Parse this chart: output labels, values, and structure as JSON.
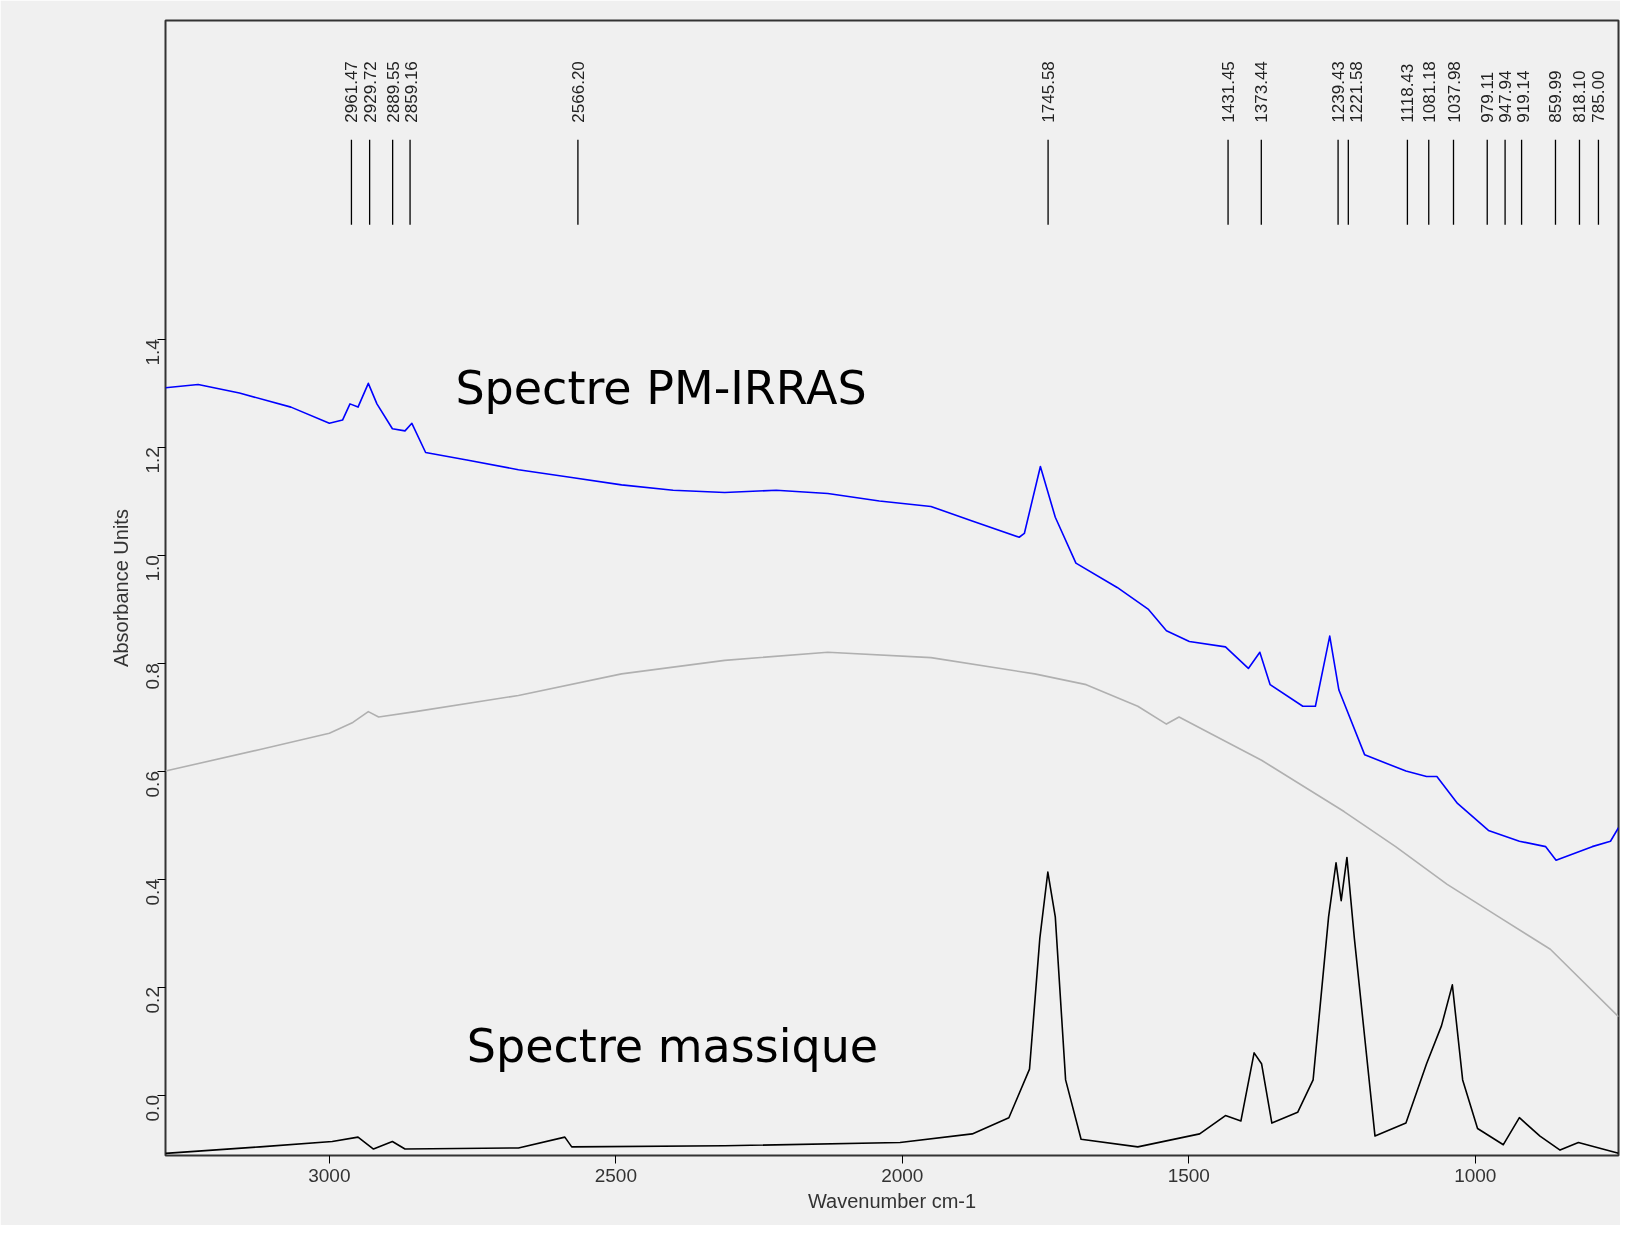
{
  "chart_data": {
    "type": "line",
    "xlabel": "Wavenumber cm-1",
    "ylabel": "Absorbance Units",
    "xlim": [
      3286,
      750
    ],
    "ylim": [
      -0.112,
      1.99
    ],
    "xticks": [
      3000,
      2500,
      2000,
      1500,
      1000
    ],
    "yticks": [
      {
        "value": 0,
        "label": "0.0"
      },
      0.2,
      0.4,
      0.6,
      0.8,
      {
        "value": 1,
        "label": "1.0"
      },
      1.2,
      1.4
    ],
    "grid": false,
    "line_style": "solid",
    "marker": "none",
    "series": [
      {
        "name": "Spectre PM-IRRAS",
        "color": "#0000ff",
        "x": [
          3286,
          3229,
          3157,
          3067,
          3000,
          2977,
          2964,
          2950,
          2932,
          2917,
          2890,
          2868,
          2856,
          2832,
          2760,
          2670,
          2580,
          2490,
          2400,
          2310,
          2220,
          2130,
          2040,
          1950,
          1878,
          1796,
          1787,
          1759,
          1733,
          1697,
          1625,
          1571,
          1539,
          1499,
          1436,
          1396,
          1376,
          1358,
          1301,
          1279,
          1254,
          1238,
          1193,
          1121,
          1085,
          1067,
          1031,
          977,
          923,
          877,
          859,
          796,
          764,
          750
        ],
        "values": [
          1.31,
          1.316,
          1.3,
          1.274,
          1.244,
          1.25,
          1.28,
          1.274,
          1.318,
          1.28,
          1.234,
          1.23,
          1.244,
          1.19,
          1.176,
          1.158,
          1.144,
          1.13,
          1.12,
          1.116,
          1.12,
          1.114,
          1.1,
          1.09,
          1.063,
          1.033,
          1.04,
          1.164,
          1.07,
          0.985,
          0.94,
          0.9,
          0.86,
          0.84,
          0.83,
          0.79,
          0.82,
          0.76,
          0.72,
          0.72,
          0.85,
          0.75,
          0.63,
          0.6,
          0.59,
          0.59,
          0.54,
          0.49,
          0.47,
          0.46,
          0.435,
          0.46,
          0.47,
          0.495
        ]
      },
      {
        "color": "#b0b0b0",
        "x": [
          3286,
          3121,
          3000,
          2959,
          2932,
          2914,
          2850,
          2670,
          2490,
          2310,
          2130,
          1950,
          1769,
          1679,
          1589,
          1539,
          1517,
          1463,
          1373,
          1229,
          1139,
          1049,
          959,
          869,
          750
        ],
        "values": [
          0.6,
          0.64,
          0.67,
          0.69,
          0.71,
          0.7,
          0.71,
          0.74,
          0.78,
          0.805,
          0.82,
          0.81,
          0.78,
          0.76,
          0.72,
          0.687,
          0.7,
          0.67,
          0.62,
          0.525,
          0.46,
          0.39,
          0.33,
          0.27,
          0.145
        ]
      },
      {
        "name": "Spectre massique",
        "color": "#000000",
        "x": [
          3286,
          3121,
          2995,
          2950,
          2923,
          2890,
          2868,
          2670,
          2589,
          2577,
          2310,
          2004,
          1878,
          1814,
          1778,
          1760,
          1746,
          1733,
          1715,
          1688,
          1589,
          1481,
          1436,
          1409,
          1386,
          1373,
          1355,
          1310,
          1283,
          1256,
          1243,
          1234,
          1224,
          1211,
          1175,
          1121,
          1085,
          1059,
          1040,
          1022,
          996,
          951,
          923,
          887,
          852,
          820,
          750
        ],
        "values": [
          -0.108,
          -0.096,
          -0.086,
          -0.078,
          -0.1,
          -0.086,
          -0.1,
          -0.098,
          -0.078,
          -0.096,
          -0.094,
          -0.088,
          -0.072,
          -0.042,
          0.048,
          0.29,
          0.413,
          0.33,
          0.028,
          -0.082,
          -0.096,
          -0.072,
          -0.038,
          -0.048,
          0.078,
          0.058,
          -0.052,
          -0.032,
          0.028,
          0.33,
          0.43,
          0.36,
          0.44,
          0.29,
          -0.076,
          -0.052,
          0.058,
          0.128,
          0.204,
          0.028,
          -0.062,
          -0.092,
          -0.042,
          -0.076,
          -0.102,
          -0.088,
          -0.108
        ]
      }
    ],
    "ref_lines": [
      {
        "axis": "x",
        "value": 2961.47,
        "label": "2961.47"
      },
      {
        "axis": "x",
        "value": 2929.72,
        "label": "2929.72"
      },
      {
        "axis": "x",
        "value": 2889.55,
        "label": "2889.55"
      },
      {
        "axis": "x",
        "value": 2859.16,
        "label": "2859.16"
      },
      {
        "axis": "x",
        "value": 2566.2,
        "label": "2566.20"
      },
      {
        "axis": "x",
        "value": 1745.58,
        "label": "1745.58"
      },
      {
        "axis": "x",
        "value": 1431.45,
        "label": "1431.45"
      },
      {
        "axis": "x",
        "value": 1373.44,
        "label": "1373.44"
      },
      {
        "axis": "x",
        "value": 1239.43,
        "label": "1239.43"
      },
      {
        "axis": "x",
        "value": 1221.58,
        "label": "1221.58"
      },
      {
        "axis": "x",
        "value": 1118.43,
        "label": "1118.43"
      },
      {
        "axis": "x",
        "value": 1081.18,
        "label": "1081.18"
      },
      {
        "axis": "x",
        "value": 1037.98,
        "label": "1037.98"
      },
      {
        "axis": "x",
        "value": 979.11,
        "label": "979.11"
      },
      {
        "axis": "x",
        "value": 947.94,
        "label": "947.94"
      },
      {
        "axis": "x",
        "value": 919.14,
        "label": "919.14"
      },
      {
        "axis": "x",
        "value": 859.99,
        "label": "859.99"
      },
      {
        "axis": "x",
        "value": 818.1,
        "label": "818.10"
      },
      {
        "axis": "x",
        "value": 785.0,
        "label": "785.00"
      }
    ]
  }
}
